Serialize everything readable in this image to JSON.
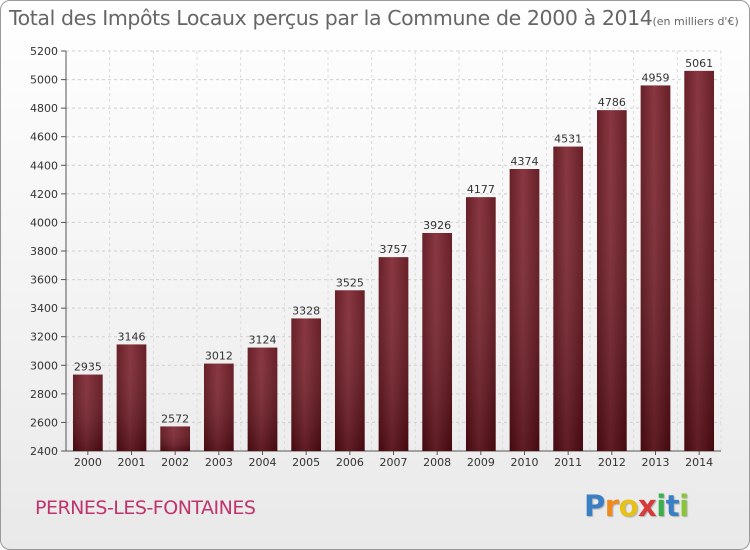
{
  "chart_data": {
    "type": "bar",
    "title": "Total des Impôts Locaux perçus par la Commune de 2000 à 2014",
    "unit": "(en milliers d'€)",
    "subtitle": "PERNES-LES-FONTAINES",
    "categories": [
      "2000",
      "2001",
      "2002",
      "2003",
      "2004",
      "2005",
      "2006",
      "2007",
      "2008",
      "2009",
      "2010",
      "2011",
      "2012",
      "2013",
      "2014"
    ],
    "values": [
      2935,
      3146,
      2572,
      3012,
      3124,
      3328,
      3525,
      3757,
      3926,
      4177,
      4374,
      4531,
      4786,
      4959,
      5061
    ],
    "ylim": [
      2400,
      5200
    ],
    "yticks": [
      2400,
      2600,
      2800,
      3000,
      3200,
      3400,
      3600,
      3800,
      4000,
      4200,
      4400,
      4600,
      4800,
      5000,
      5200
    ],
    "grid": true,
    "bar_color": "#6e1420",
    "xlabel": "",
    "ylabel": ""
  },
  "logo": {
    "letters": [
      "P",
      "r",
      "o",
      "x",
      "i",
      "t",
      "i"
    ],
    "colors": [
      "#3a7fc4",
      "#f08a1c",
      "#e8c01a",
      "#d63a3a",
      "#3ab04a",
      "#3a7fc4",
      "#8ac43a"
    ]
  }
}
